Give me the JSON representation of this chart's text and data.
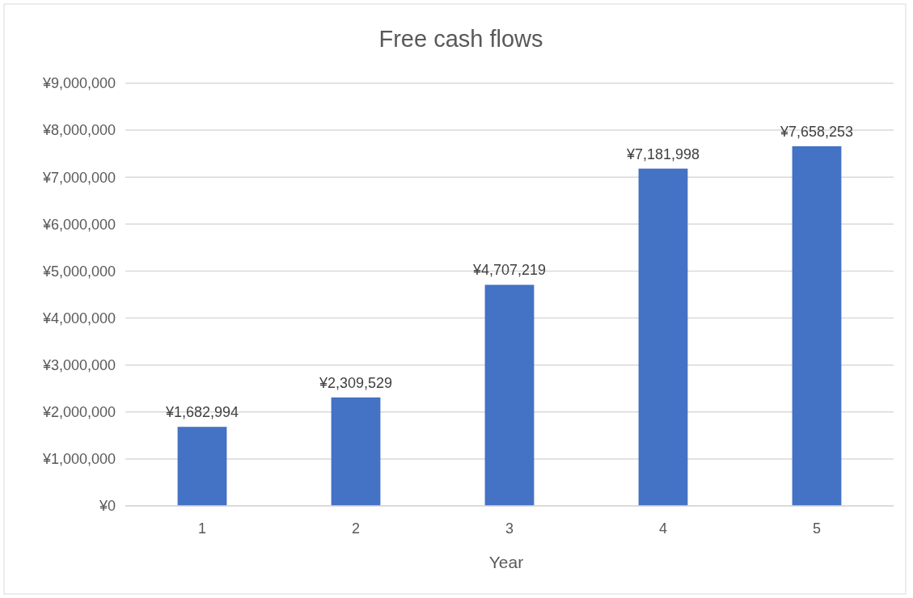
{
  "chart_data": {
    "type": "bar",
    "title": "Free cash flows",
    "xlabel": "Year",
    "categories": [
      "1",
      "2",
      "3",
      "4",
      "5"
    ],
    "values": [
      1682994,
      2309529,
      4707219,
      7181998,
      7658253
    ],
    "value_labels": [
      "¥1,682,994",
      "¥2,309,529",
      "¥4,707,219",
      "¥7,181,998",
      "¥7,658,253"
    ],
    "color": "#4472c4",
    "ylim": [
      0,
      9000000
    ],
    "yticks": [
      {
        "value": 0,
        "label": "¥0"
      },
      {
        "value": 1000000,
        "label": "¥1,000,000"
      },
      {
        "value": 2000000,
        "label": "¥2,000,000"
      },
      {
        "value": 3000000,
        "label": "¥3,000,000"
      },
      {
        "value": 4000000,
        "label": "¥4,000,000"
      },
      {
        "value": 5000000,
        "label": "¥5,000,000"
      },
      {
        "value": 6000000,
        "label": "¥6,000,000"
      },
      {
        "value": 7000000,
        "label": "¥7,000,000"
      },
      {
        "value": 8000000,
        "label": "¥8,000,000"
      },
      {
        "value": 9000000,
        "label": "¥9,000,000"
      }
    ],
    "grid": "y"
  }
}
